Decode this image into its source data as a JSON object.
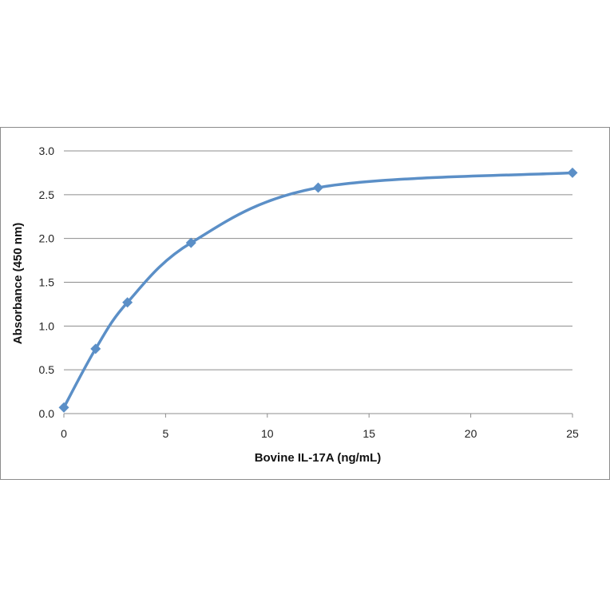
{
  "chart_data": {
    "type": "scatter",
    "xlabel": "Bovine IL-17A (ng/mL)",
    "ylabel": "Absorbance (450 nm)",
    "xlim": [
      0,
      25
    ],
    "ylim": [
      0,
      3
    ],
    "x_ticks": [
      "0",
      "5",
      "10",
      "15",
      "20",
      "25"
    ],
    "y_ticks": [
      "0.0",
      "0.5",
      "1.0",
      "1.5",
      "2.0",
      "2.5",
      "3.0"
    ],
    "grid": "horizontal",
    "smooth_line": true,
    "series": [
      {
        "x": [
          0,
          1.56,
          3.125,
          6.25,
          12.5,
          25
        ],
        "y": [
          0.07,
          0.74,
          1.27,
          1.95,
          2.58,
          2.75
        ],
        "color": "#5b8fc7",
        "marker": "diamond"
      }
    ]
  }
}
